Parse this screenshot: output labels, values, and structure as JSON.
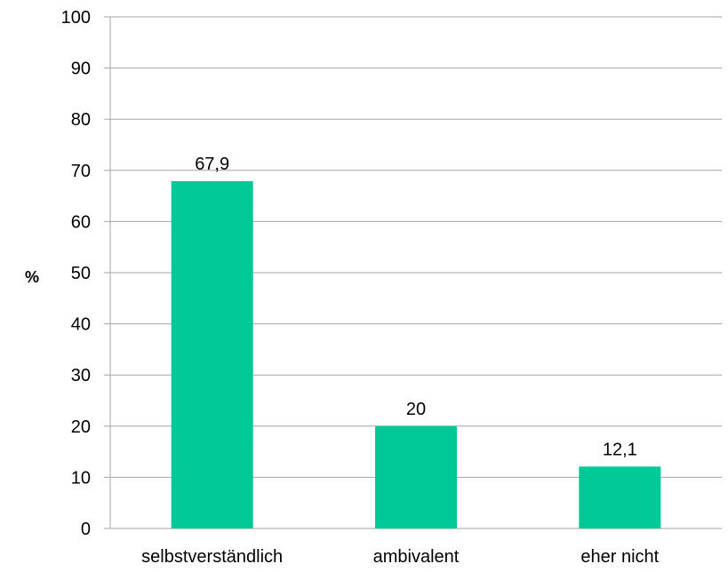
{
  "chart_data": {
    "type": "bar",
    "title": "",
    "xlabel": "",
    "ylabel": "%",
    "ylim": [
      0,
      100
    ],
    "ytick_step": 10,
    "yticks": [
      "0",
      "10",
      "20",
      "30",
      "40",
      "50",
      "60",
      "70",
      "80",
      "90",
      "100"
    ],
    "categories": [
      "selbstverständlich",
      "ambivalent",
      "eher nicht"
    ],
    "values": [
      67.9,
      20,
      12.1
    ],
    "data_labels": [
      "67,9",
      "20",
      "12,1"
    ],
    "grid": true,
    "legend": "none",
    "colors": {
      "bar": "#00c896",
      "grid": "#a6a6a6",
      "axis": "#a6a6a6",
      "text": "#000000"
    }
  }
}
